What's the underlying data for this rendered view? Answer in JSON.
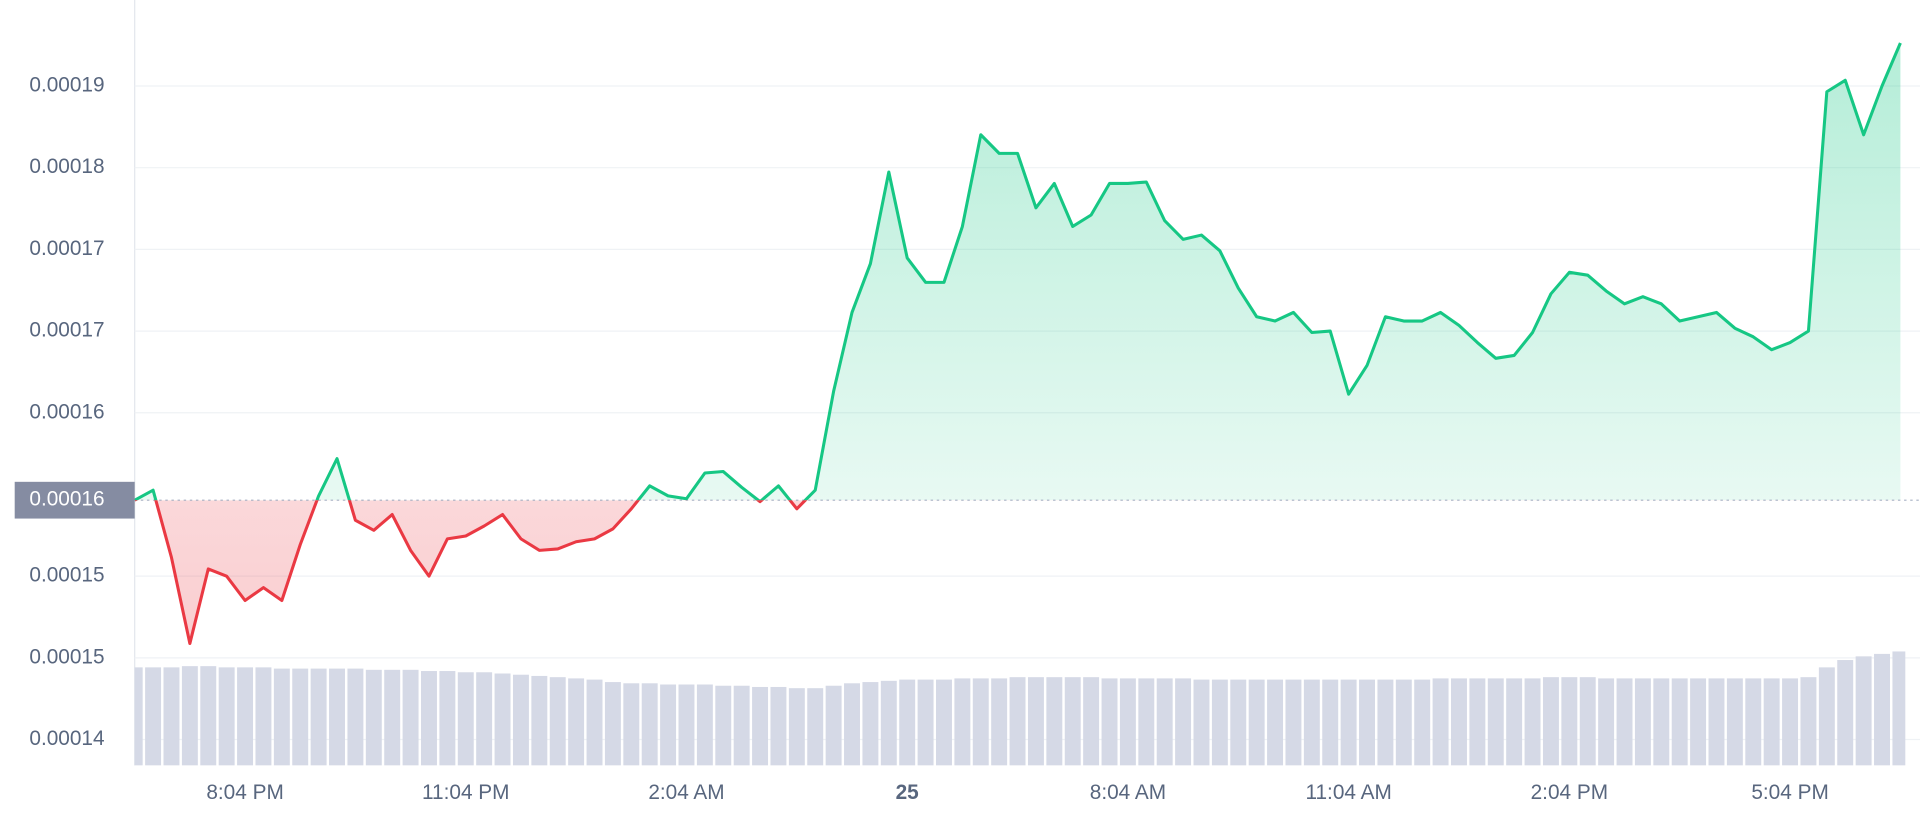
{
  "chart_data": {
    "type": "line",
    "xlim": [
      0,
      96
    ],
    "xticks": [
      {
        "value": 6,
        "label": "8:04 PM"
      },
      {
        "value": 18,
        "label": "11:04 PM"
      },
      {
        "value": 30,
        "label": "2:04 AM"
      },
      {
        "value": 42,
        "label": "25",
        "bold": true
      },
      {
        "value": 54,
        "label": "8:04 AM"
      },
      {
        "value": 66,
        "label": "11:04 AM"
      },
      {
        "value": 78,
        "label": "2:04 PM"
      },
      {
        "value": 90,
        "label": "5:04 PM"
      }
    ],
    "ylim": [
      0.0001382,
      0.0001916
    ],
    "yticks": [
      {
        "value": 0.00014,
        "label": "0.00014"
      },
      {
        "value": 0.0001457,
        "label": "0.00015"
      },
      {
        "value": 0.0001514,
        "label": "0.00015"
      },
      {
        "value": 0.0001628,
        "label": "0.00016"
      },
      {
        "value": 0.0001685,
        "label": "0.00017"
      },
      {
        "value": 0.0001742,
        "label": "0.00017"
      },
      {
        "value": 0.0001799,
        "label": "0.00018"
      },
      {
        "value": 0.0001856,
        "label": "0.00019"
      }
    ],
    "grid": true,
    "reference": {
      "value": 0.0001567,
      "label": "0.00016"
    },
    "up_color": "#16c784",
    "down_color": "#ea3943",
    "values": [
      0.0001567,
      0.0001574,
      0.0001527,
      0.0001467,
      0.0001519,
      0.0001514,
      0.0001497,
      0.0001506,
      0.0001497,
      0.0001536,
      0.000157,
      0.0001596,
      0.0001553,
      0.0001546,
      0.0001557,
      0.0001532,
      0.0001514,
      0.000154,
      0.0001542,
      0.0001549,
      0.0001557,
      0.000154,
      0.0001532,
      0.0001533,
      0.0001538,
      0.000154,
      0.0001547,
      0.0001561,
      0.0001577,
      0.000157,
      0.0001568,
      0.0001586,
      0.0001587,
      0.0001576,
      0.0001566,
      0.0001577,
      0.0001561,
      0.0001574,
      0.0001643,
      0.0001698,
      0.0001732,
      0.0001796,
      0.0001736,
      0.0001719,
      0.0001719,
      0.0001758,
      0.0001822,
      0.0001809,
      0.0001809,
      0.0001771,
      0.0001788,
      0.0001758,
      0.0001766,
      0.0001788,
      0.0001788,
      0.0001789,
      0.0001762,
      0.0001749,
      0.0001752,
      0.0001741,
      0.0001715,
      0.0001695,
      0.0001692,
      0.0001698,
      0.0001684,
      0.0001685,
      0.0001641,
      0.0001661,
      0.0001695,
      0.0001692,
      0.0001692,
      0.0001698,
      0.0001689,
      0.0001677,
      0.0001666,
      0.0001668,
      0.0001684,
      0.0001711,
      0.0001726,
      0.0001724,
      0.0001713,
      0.0001704,
      0.0001709,
      0.0001704,
      0.0001692,
      0.0001695,
      0.0001698,
      0.0001687,
      0.0001681,
      0.0001672,
      0.0001677,
      0.0001685,
      0.0001852,
      0.000186,
      0.0001822,
      0.0001856,
      0.0001886
    ],
    "volume": {
      "color": "#d5d9e6",
      "y2lim": [
        0,
        100
      ],
      "values": [
        80,
        80,
        80,
        81,
        81,
        80,
        80,
        80,
        79,
        79,
        79,
        79,
        79,
        78,
        78,
        78,
        77,
        77,
        76,
        76,
        75,
        74,
        73,
        72,
        71,
        70,
        68,
        67,
        67,
        66,
        66,
        66,
        65,
        65,
        64,
        64,
        63,
        63,
        65,
        67,
        68,
        69,
        70,
        70,
        70,
        71,
        71,
        71,
        72,
        72,
        72,
        72,
        72,
        71,
        71,
        71,
        71,
        71,
        70,
        70,
        70,
        70,
        70,
        70,
        70,
        70,
        70,
        70,
        70,
        70,
        70,
        71,
        71,
        71,
        71,
        71,
        71,
        72,
        72,
        72,
        71,
        71,
        71,
        71,
        71,
        71,
        71,
        71,
        71,
        71,
        71,
        72,
        80,
        86,
        89,
        91,
        93
      ]
    }
  }
}
